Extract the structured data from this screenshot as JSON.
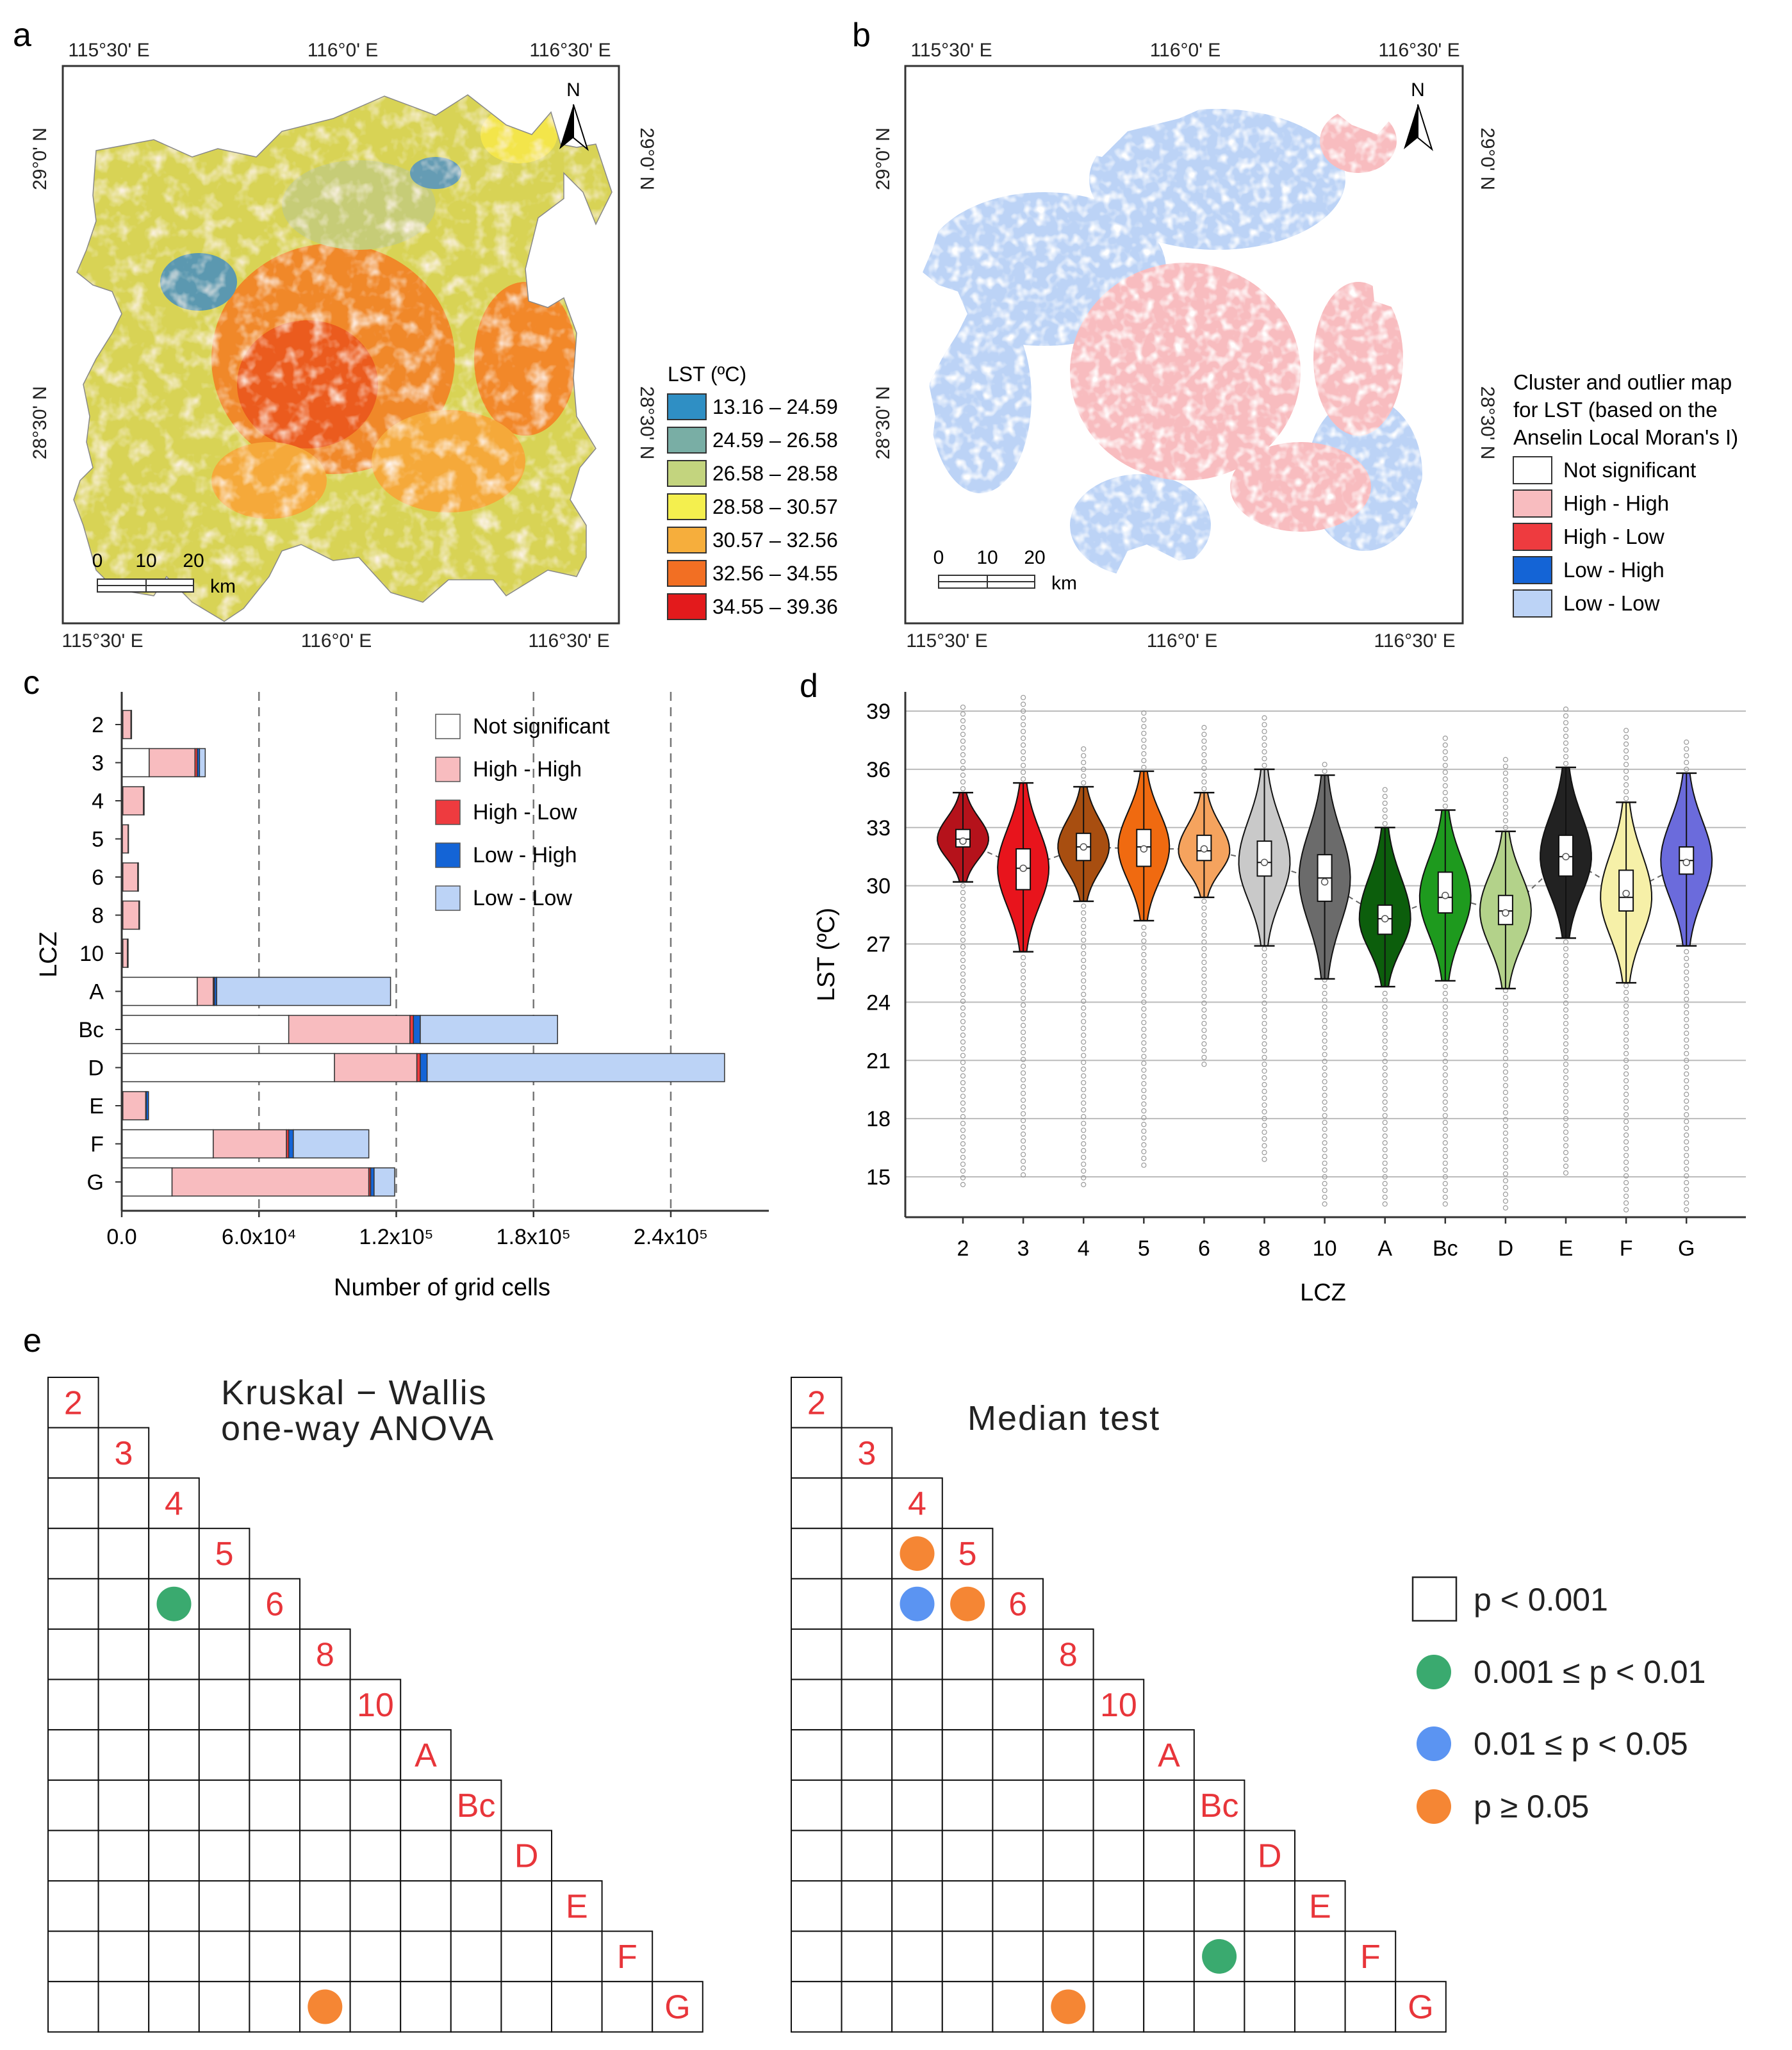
{
  "panels": {
    "a": "a",
    "b": "b",
    "c": "c",
    "d": "d",
    "e": "e"
  },
  "maps": {
    "lon_ticks": [
      "115°30' E",
      "116°0' E",
      "116°30' E"
    ],
    "lat_ticks": [
      "29°0' N",
      "28°30' N"
    ],
    "north": "N",
    "scale": {
      "labels": [
        "0",
        "10",
        "20"
      ],
      "unit": "km"
    }
  },
  "legend_a": {
    "title": "LST (ºC)",
    "items": [
      {
        "label": "13.16 – 24.59",
        "color": "#2f8fc4"
      },
      {
        "label": "24.59 – 26.58",
        "color": "#79aea5"
      },
      {
        "label": "26.58 – 28.58",
        "color": "#c3d47e"
      },
      {
        "label": "28.58 – 30.57",
        "color": "#f4ef4e"
      },
      {
        "label": "30.57 – 32.56",
        "color": "#f6ae3c"
      },
      {
        "label": "32.56 – 34.55",
        "color": "#f26f23"
      },
      {
        "label": "34.55 – 39.36",
        "color": "#e31a1c"
      }
    ]
  },
  "legend_b": {
    "title": [
      "Cluster and outlier map",
      "for LST (based on the",
      "Anselin Local Moran's I)"
    ],
    "items": [
      {
        "label": "Not significant",
        "color": "#ffffff"
      },
      {
        "label": "High - High",
        "color": "#f8bcbf"
      },
      {
        "label": "High - Low",
        "color": "#ee3b3f"
      },
      {
        "label": "Low - High",
        "color": "#1464d6"
      },
      {
        "label": "Low - Low",
        "color": "#bcd3f6"
      }
    ]
  },
  "chart_data": [
    {
      "panel": "c",
      "type": "bar",
      "orientation": "horizontal-stacked",
      "categories": [
        "2",
        "3",
        "4",
        "5",
        "6",
        "8",
        "10",
        "A",
        "Bc",
        "D",
        "E",
        "F",
        "G"
      ],
      "series": [
        {
          "name": "Not significant",
          "color": "#ffffff",
          "values": [
            500,
            12000,
            500,
            300,
            500,
            500,
            500,
            33000,
            73000,
            93000,
            500,
            40000,
            22000
          ]
        },
        {
          "name": "High - High",
          "color": "#f8bcbf",
          "values": [
            3500,
            20000,
            9000,
            2500,
            6500,
            7000,
            2000,
            7000,
            53000,
            36000,
            10000,
            32000,
            86000
          ]
        },
        {
          "name": "High - Low",
          "color": "#ee3b3f",
          "values": [
            200,
            1000,
            200,
            100,
            200,
            200,
            200,
            500,
            1500,
            1500,
            200,
            1000,
            800
          ]
        },
        {
          "name": "Low - High",
          "color": "#1464d6",
          "values": [
            100,
            1000,
            100,
            50,
            100,
            100,
            100,
            1000,
            3000,
            3000,
            1000,
            2000,
            1500
          ]
        },
        {
          "name": "Low - Low",
          "color": "#bcd3f6",
          "values": [
            0,
            2500,
            0,
            0,
            0,
            0,
            0,
            76000,
            60000,
            130000,
            0,
            33000,
            9000
          ]
        }
      ],
      "xlabel": "Number of grid cells",
      "ylabel": "LCZ",
      "xlim": [
        0,
        280000
      ],
      "xticks": [
        0,
        60000,
        120000,
        180000,
        240000
      ],
      "xtick_labels": [
        "0.0",
        "6.0x10⁴",
        "1.2x10⁵",
        "1.8x10⁵",
        "2.4x10⁵"
      ]
    },
    {
      "panel": "d",
      "type": "violin",
      "categories": [
        "2",
        "3",
        "4",
        "5",
        "6",
        "8",
        "10",
        "A",
        "Bc",
        "D",
        "E",
        "F",
        "G"
      ],
      "colors": [
        "#b5121b",
        "#e8141c",
        "#a84e10",
        "#f06a10",
        "#f5a35e",
        "#c9c9c9",
        "#6b6b6b",
        "#0c5e0c",
        "#1e9a1e",
        "#b3d28a",
        "#222222",
        "#f6f0a8",
        "#6b6bdc"
      ],
      "whisker_low": [
        30.2,
        26.6,
        29.2,
        28.2,
        29.4,
        26.9,
        25.2,
        24.8,
        25.1,
        24.7,
        27.3,
        25.0,
        26.9
      ],
      "q1": [
        32.0,
        29.8,
        31.3,
        31.0,
        31.3,
        30.5,
        29.2,
        27.5,
        28.6,
        28.0,
        30.5,
        28.7,
        30.6
      ],
      "median": [
        32.4,
        30.9,
        32.0,
        32.0,
        31.8,
        31.2,
        30.4,
        28.3,
        29.4,
        28.7,
        31.5,
        29.4,
        31.3
      ],
      "q3": [
        32.9,
        31.9,
        32.7,
        32.9,
        32.6,
        32.3,
        31.6,
        29.0,
        30.7,
        29.5,
        32.6,
        30.8,
        32.0
      ],
      "whisker_high": [
        34.8,
        35.3,
        35.1,
        35.9,
        34.8,
        36.0,
        35.7,
        33.0,
        33.9,
        32.8,
        36.1,
        34.3,
        35.8
      ],
      "min": [
        14.6,
        15.1,
        14.6,
        15.6,
        20.8,
        15.9,
        13.6,
        13.6,
        13.6,
        13.4,
        15.2,
        13.3,
        13.3
      ],
      "max": [
        39.4,
        39.8,
        37.1,
        39.1,
        38.4,
        38.9,
        36.5,
        35.3,
        37.8,
        36.6,
        39.2,
        38.3,
        37.5
      ],
      "mean": [
        32.3,
        30.9,
        32.0,
        31.9,
        31.9,
        31.2,
        30.2,
        28.3,
        29.5,
        28.6,
        31.5,
        29.6,
        31.2
      ],
      "xlabel": "LCZ",
      "ylabel": "LST (ºC)",
      "ylim": [
        13,
        40
      ],
      "yticks": [
        15,
        18,
        21,
        24,
        27,
        30,
        33,
        36,
        39
      ]
    },
    {
      "panel": "e",
      "type": "matrix",
      "matrices": [
        {
          "title": [
            "Kruskal − Wallis",
            "one-way ANOVA"
          ],
          "cells": [
            {
              "row": "6",
              "col": "4",
              "class": "green"
            },
            {
              "row": "G",
              "col": "8",
              "class": "orange"
            }
          ]
        },
        {
          "title": [
            "Median test"
          ],
          "cells": [
            {
              "row": "5",
              "col": "4",
              "class": "orange"
            },
            {
              "row": "6",
              "col": "4",
              "class": "blue"
            },
            {
              "row": "6",
              "col": "5",
              "class": "orange"
            },
            {
              "row": "F",
              "col": "Bc",
              "class": "green"
            },
            {
              "row": "G",
              "col": "8",
              "class": "orange"
            }
          ]
        }
      ],
      "labels": [
        "2",
        "3",
        "4",
        "5",
        "6",
        "8",
        "10",
        "A",
        "Bc",
        "D",
        "E",
        "F",
        "G"
      ],
      "legend": [
        {
          "key": "white",
          "label": "p < 0.001"
        },
        {
          "key": "green",
          "label": "0.001 ≤ p < 0.01",
          "color": "#3aaa6f"
        },
        {
          "key": "blue",
          "label": "0.01 ≤ p < 0.05",
          "color": "#5b94f2"
        },
        {
          "key": "orange",
          "label": "p ≥ 0.05",
          "color": "#f58634"
        }
      ]
    }
  ]
}
